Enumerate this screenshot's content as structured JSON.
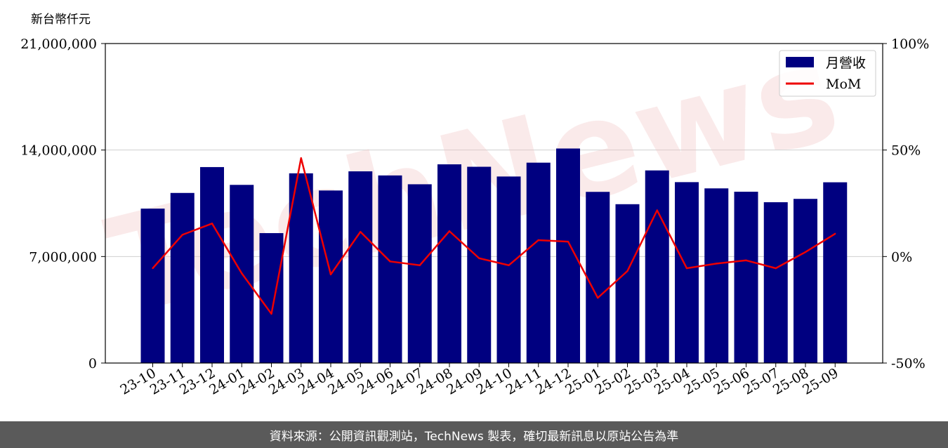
{
  "chart_data": {
    "type": "bar",
    "ylabel": "新台幣仟元",
    "categories": [
      "23-10",
      "23-11",
      "23-12",
      "24-01",
      "24-02",
      "24-03",
      "24-04",
      "24-05",
      "24-06",
      "24-07",
      "24-08",
      "24-09",
      "24-10",
      "24-11",
      "24-12",
      "25-01",
      "25-02",
      "25-03",
      "25-04",
      "25-05",
      "25-06",
      "25-07",
      "25-08",
      "25-09"
    ],
    "series": [
      {
        "name": "月營收",
        "type": "bar",
        "axis": "left",
        "color": "#000080",
        "values": [
          10150000,
          11180000,
          12880000,
          11710000,
          8540000,
          12470000,
          11340000,
          12600000,
          12330000,
          11750000,
          13060000,
          12900000,
          12260000,
          13170000,
          14100000,
          11250000,
          10440000,
          12660000,
          11890000,
          11480000,
          11260000,
          10570000,
          10790000,
          11880000
        ]
      },
      {
        "name": "MoM",
        "type": "line",
        "axis": "right",
        "color": "#ee0000",
        "values": [
          -5.5,
          10.2,
          15.5,
          -7.9,
          -26.9,
          46.2,
          -8.4,
          11.6,
          -2.3,
          -4.1,
          11.9,
          -0.8,
          -4.1,
          7.7,
          7.0,
          -19.4,
          -6.8,
          21.7,
          -5.5,
          -3.3,
          -1.8,
          -5.5,
          2.1,
          10.7
        ]
      }
    ],
    "left_axis": {
      "min": 0,
      "max": 21000000,
      "ticks": [
        "0",
        "7,000,000",
        "14,000,000",
        "21,000,000"
      ]
    },
    "right_axis": {
      "min": -50,
      "max": 100,
      "ticks": [
        "-50%",
        "0%",
        "50%",
        "100%"
      ]
    },
    "legend": {
      "position": "top-right",
      "entries": [
        "月營收",
        "MoM"
      ]
    },
    "grid": "horizontal"
  },
  "watermark": "TechNews",
  "footer": "資料來源：公開資訊觀測站，TechNews 製表，確切最新訊息以原站公告為準"
}
